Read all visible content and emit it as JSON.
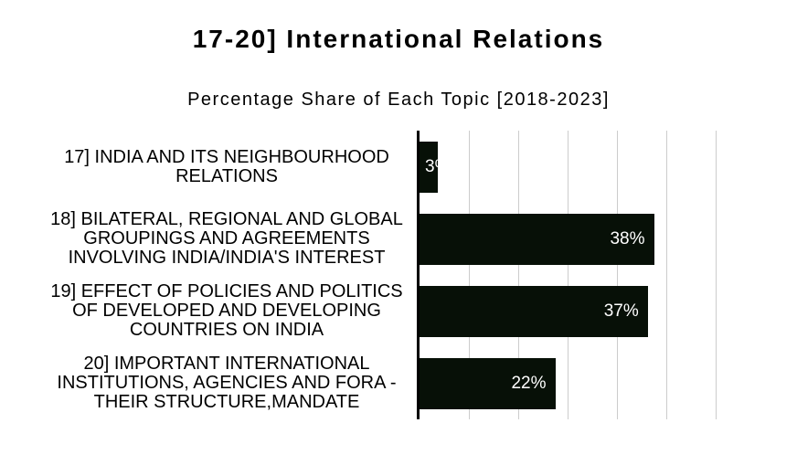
{
  "title": "17-20] International Relations",
  "subtitle": "Percentage Share of Each Topic [2018-2023]",
  "colors": {
    "background": "#ffffff",
    "bar": "#071007",
    "gridline": "#cccccc",
    "axis": "#000000",
    "value_label": "#ffffff",
    "category_text": "#000000",
    "title_text": "#000000"
  },
  "chart_data": {
    "type": "bar",
    "orientation": "horizontal",
    "title": "17-20] International Relations",
    "subtitle": "Percentage Share of Each Topic [2018-2023]",
    "categories": [
      "17] INDIA AND ITS NEIGHBOURHOOD RELATIONS",
      "18] BILATERAL, REGIONAL AND GLOBAL GROUPINGS AND AGREEMENTS INVOLVING INDIA/INDIA'S INTEREST",
      "19] EFFECT OF POLICIES AND POLITICS OF DEVELOPED AND DEVELOPING COUNTRIES ON INDIA",
      "20] IMPORTANT INTERNATIONAL INSTITUTIONS, AGENCIES AND FORA - THEIR STRUCTURE,MANDATE"
    ],
    "category_lines": [
      [
        "17] INDIA AND ITS NEIGHBOURHOOD",
        "RELATIONS"
      ],
      [
        "18] BILATERAL, REGIONAL AND GLOBAL",
        "GROUPINGS AND AGREEMENTS",
        "INVOLVING INDIA/INDIA'S INTEREST"
      ],
      [
        "19] EFFECT OF POLICIES AND POLITICS",
        "OF DEVELOPED AND DEVELOPING",
        "COUNTRIES ON INDIA"
      ],
      [
        "20] IMPORTANT INTERNATIONAL",
        "INSTITUTIONS, AGENCIES AND FORA -",
        "THEIR STRUCTURE,MANDATE"
      ]
    ],
    "values": [
      3,
      38,
      37,
      22
    ],
    "value_labels": [
      "3%",
      "38%",
      "37%",
      "22%"
    ],
    "xlabel": "",
    "ylabel": "",
    "xlim": [
      0,
      48
    ],
    "gridline_interval": 8,
    "grid": true,
    "legend": "none",
    "x_tick_labels": "none"
  }
}
